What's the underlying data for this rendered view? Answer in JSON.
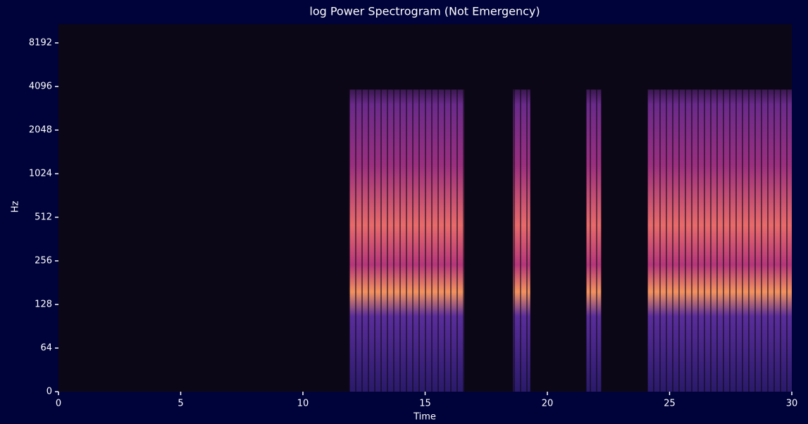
{
  "chart_data": {
    "type": "spectrogram",
    "title": "log Power Spectrogram (Not Emergency)",
    "x_label": "Time",
    "y_label": "Hz",
    "xlim": [
      0,
      30
    ],
    "xticks": [
      0,
      5,
      10,
      15,
      20,
      25,
      30
    ],
    "ylim": [
      0,
      11025
    ],
    "yticks": [
      0,
      64,
      128,
      256,
      512,
      1024,
      2048,
      4096,
      8192
    ],
    "y_scale": "log",
    "background_color": "#0c0716",
    "segments": [
      {
        "start": 11.9,
        "end": 16.6,
        "top_hz": 3900
      },
      {
        "start": 18.6,
        "end": 19.3,
        "top_hz": 3900
      },
      {
        "start": 21.6,
        "end": 22.2,
        "top_hz": 3900
      },
      {
        "start": 24.1,
        "end": 30,
        "top_hz": 3900
      }
    ]
  }
}
